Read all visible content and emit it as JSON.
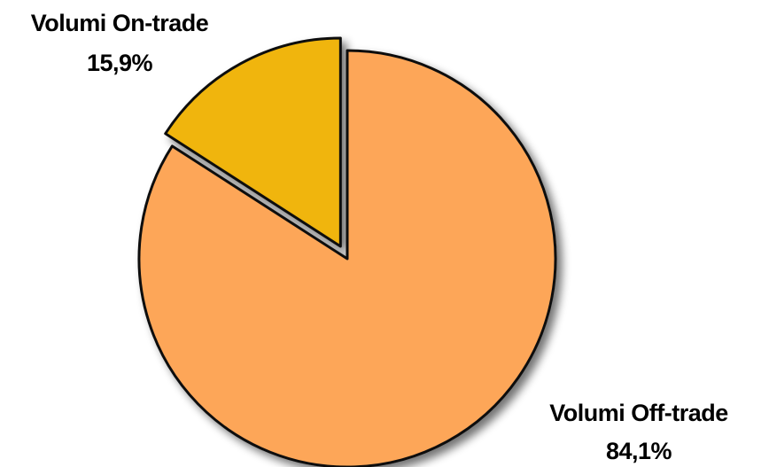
{
  "chart_data": {
    "type": "pie",
    "categories": [
      "Volumi On-trade",
      "Volumi Off-trade"
    ],
    "values": [
      15.9,
      84.1
    ],
    "value_labels": [
      "15,9%",
      "84,1%"
    ],
    "colors": [
      "#f0b50c",
      "#fda659"
    ],
    "exploded": [
      true,
      false
    ],
    "start_angle_deg": 0,
    "direction": "counterclockwise",
    "title": ""
  }
}
